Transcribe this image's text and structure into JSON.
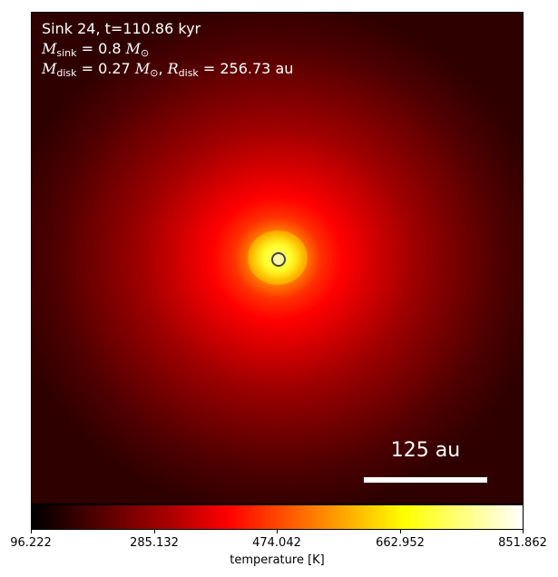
{
  "info": {
    "line1": "Sink 24, t=110.86 kyr",
    "msink_symbol": "M",
    "msink_sub": "sink",
    "msink_value": " = 0.8 ",
    "msun_symbol": "M",
    "msun_sub": "⊙",
    "mdisk_symbol": "M",
    "mdisk_sub": "disk",
    "mdisk_value": " = 0.27 ",
    "mdisk_sun_symbol": "M",
    "mdisk_sun_sub": "⊙",
    "rdisk_symbol": "R",
    "rdisk_sub": "disk",
    "rdisk_value": " = 256.73 au"
  },
  "scale_bar": {
    "label": "125 au"
  },
  "colorbar": {
    "label": "temperature [K]",
    "ticks": [
      "96.222",
      "285.132",
      "474.042",
      "662.952",
      "851.862"
    ]
  },
  "colors": {
    "colormap": "hot",
    "marker_edge": "#444444"
  }
}
